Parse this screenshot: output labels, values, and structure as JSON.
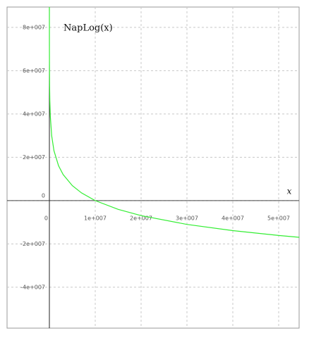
{
  "chart_data": {
    "type": "line",
    "title": "NapLog(x)",
    "x_label": "x",
    "x": [
      1500,
      5000,
      10000,
      20000,
      50000,
      100000,
      200000,
      500000,
      1000000,
      2000000,
      3000000,
      5000000,
      7000000,
      10000000,
      15000000,
      20000000,
      30000000,
      40000000,
      50000000,
      54500000
    ],
    "series": [
      {
        "name": "NapLog(x)",
        "color": "#33ee33",
        "values": [
          88050000,
          76010000,
          69080000,
          62150000,
          52980000,
          46050000,
          39120000,
          29960000,
          23030000,
          16090000,
          12040000,
          6930000,
          3570000,
          0,
          -4050000,
          -6930000,
          -10990000,
          -13860000,
          -16090000,
          -16950000
        ]
      }
    ],
    "xlim": [
      -9230000,
      54460000
    ],
    "ylim": [
      -58900000,
      89400000
    ],
    "xticks": [
      0,
      {
        "value": 10000000,
        "label": "1e+007"
      },
      {
        "value": 20000000,
        "label": "2e+007"
      },
      {
        "value": 30000000,
        "label": "3e+007"
      },
      {
        "value": 40000000,
        "label": "4e+007"
      },
      {
        "value": 50000000,
        "label": "5e+007"
      }
    ],
    "yticks": [
      {
        "value": -40000000,
        "label": "-4e+007"
      },
      {
        "value": -20000000,
        "label": "-2e+007"
      },
      0,
      {
        "value": 20000000,
        "label": "2e+007"
      },
      {
        "value": 40000000,
        "label": "4e+007"
      },
      {
        "value": 60000000,
        "label": "6e+007"
      },
      {
        "value": 80000000,
        "label": "8e+007"
      }
    ],
    "grid": true
  }
}
